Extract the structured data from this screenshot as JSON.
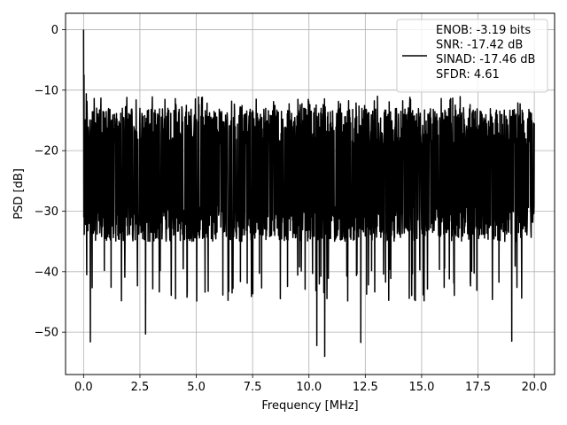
{
  "chart_data": {
    "type": "line",
    "xlabel": "Frequency [MHz]",
    "ylabel": "PSD [dB]",
    "xlim": [
      -0.8,
      20.9
    ],
    "ylim": [
      -57,
      2.7
    ],
    "xticks": [
      0.0,
      2.5,
      5.0,
      7.5,
      10.0,
      12.5,
      15.0,
      17.5,
      20.0
    ],
    "xtick_labels": [
      "0.0",
      "2.5",
      "5.0",
      "7.5",
      "10.0",
      "12.5",
      "15.0",
      "17.5",
      "20.0"
    ],
    "yticks": [
      0,
      -10,
      -20,
      -30,
      -40,
      -50
    ],
    "ytick_labels": [
      "0",
      "−10",
      "−20",
      "−30",
      "−40",
      "−50"
    ],
    "grid": true,
    "legend_placement": "upper-right",
    "legend_lines": [
      "ENOB: -3.19 bits",
      "SNR: -17.42 dB",
      "SINAD: -17.46 dB",
      "SFDR: 4.61"
    ],
    "line_color": "#000000",
    "series": [
      {
        "x_range": [
          0.0,
          20.0
        ],
        "noise_floor_mean": -24,
        "noise_upper_typical": -13,
        "noise_lower_typical": -35,
        "peaks": [
          {
            "x": 0.0,
            "y": 0.0
          },
          {
            "x": 0.02,
            "y": -7.5
          },
          {
            "x": 0.12,
            "y": -10.6
          },
          {
            "x": 0.3,
            "y": -51.6
          },
          {
            "x": 2.75,
            "y": -50.3
          },
          {
            "x": 10.35,
            "y": -52.2
          },
          {
            "x": 10.7,
            "y": -54.0
          },
          {
            "x": 12.3,
            "y": -51.7
          },
          {
            "x": 19.0,
            "y": -51.5
          }
        ]
      }
    ]
  }
}
